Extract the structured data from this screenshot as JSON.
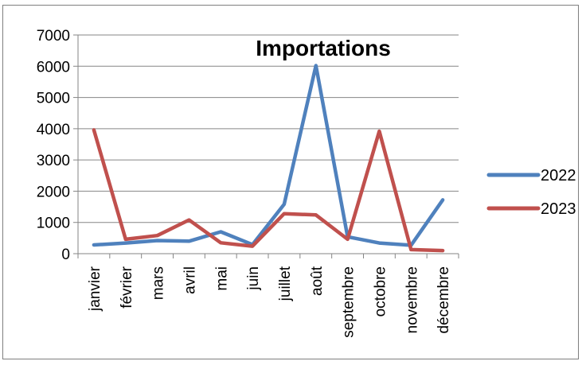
{
  "chart_data": {
    "type": "line",
    "title": "Importations",
    "xlabel": "",
    "ylabel": "",
    "categories": [
      "janvier",
      "février",
      "mars",
      "avril",
      "mai",
      "juin",
      "juillet",
      "août",
      "septembre",
      "octobre",
      "novembre",
      "décembre"
    ],
    "ylim": [
      0,
      7000
    ],
    "yticks": [
      0,
      1000,
      2000,
      3000,
      4000,
      5000,
      6000,
      7000
    ],
    "grid": true,
    "legend_position": "right",
    "series": [
      {
        "name": "2022",
        "color": "#4F81BD",
        "values": [
          280,
          340,
          420,
          400,
          700,
          290,
          1580,
          6020,
          540,
          340,
          270,
          1720
        ]
      },
      {
        "name": "2023",
        "color": "#C0504D",
        "values": [
          3960,
          460,
          580,
          1080,
          350,
          240,
          1280,
          1240,
          460,
          3920,
          130,
          100
        ]
      }
    ]
  }
}
